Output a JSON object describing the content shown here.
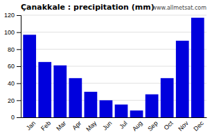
{
  "chart_data": {
    "type": "bar",
    "title": "Çanakkale : precipitation (mm)",
    "annotation": "www.allmetsat.com",
    "categories": [
      "Jan",
      "Feb",
      "Mar",
      "Apr",
      "May",
      "Jun",
      "Jul",
      "Aug",
      "Sep",
      "Oct",
      "Nov",
      "Dec"
    ],
    "values": [
      97,
      65,
      61,
      46,
      30,
      20,
      15,
      8,
      27,
      46,
      90,
      117
    ],
    "color": "#0000dd",
    "ylim": [
      0,
      120
    ],
    "yticks": [
      0,
      20,
      40,
      60,
      80,
      100,
      120
    ],
    "grid": true
  }
}
